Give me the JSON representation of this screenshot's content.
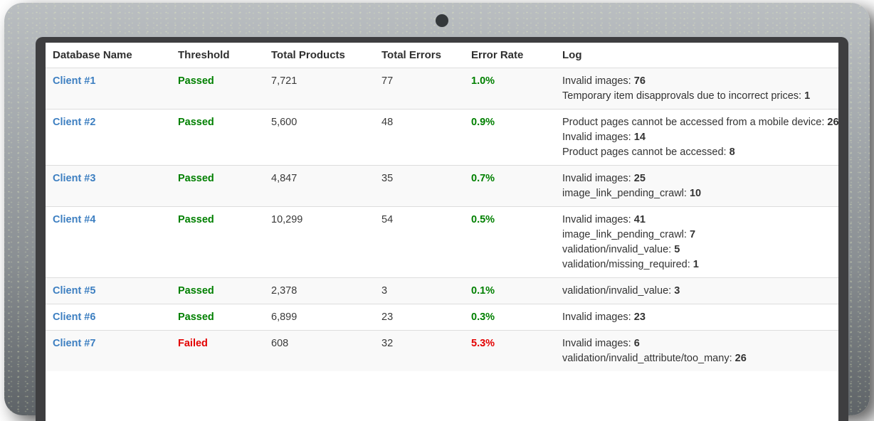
{
  "colors": {
    "passed": "#008000",
    "failed": "#e30000",
    "link_blue": "#3d7fc1",
    "text": "#333333",
    "row_stripe": "#f9f9f9",
    "border": "#dddddd",
    "bezel": "#3e3e40"
  },
  "table": {
    "columns": [
      "Database Name",
      "Threshold",
      "Total Products",
      "Total Errors",
      "Error Rate",
      "Log"
    ],
    "rows": [
      {
        "name": "Client #1",
        "threshold": "Passed",
        "status": "passed",
        "total_products": "7,721",
        "total_errors": "77",
        "error_rate": "1.0%",
        "log": [
          {
            "label": "Invalid images",
            "count": "76"
          },
          {
            "label": "Temporary item disapprovals due to incorrect prices",
            "count": "1"
          }
        ]
      },
      {
        "name": "Client #2",
        "threshold": "Passed",
        "status": "passed",
        "total_products": "5,600",
        "total_errors": "48",
        "error_rate": "0.9%",
        "log": [
          {
            "label": "Product pages cannot be accessed from a mobile device",
            "count": "26"
          },
          {
            "label": "Invalid images",
            "count": "14"
          },
          {
            "label": "Product pages cannot be accessed",
            "count": "8"
          }
        ]
      },
      {
        "name": "Client #3",
        "threshold": "Passed",
        "status": "passed",
        "total_products": "4,847",
        "total_errors": "35",
        "error_rate": "0.7%",
        "log": [
          {
            "label": "Invalid images",
            "count": "25"
          },
          {
            "label": "image_link_pending_crawl",
            "count": "10"
          }
        ]
      },
      {
        "name": "Client #4",
        "threshold": "Passed",
        "status": "passed",
        "total_products": "10,299",
        "total_errors": "54",
        "error_rate": "0.5%",
        "log": [
          {
            "label": "Invalid images",
            "count": "41"
          },
          {
            "label": "image_link_pending_crawl",
            "count": "7"
          },
          {
            "label": "validation/invalid_value",
            "count": "5"
          },
          {
            "label": "validation/missing_required",
            "count": "1"
          }
        ]
      },
      {
        "name": "Client #5",
        "threshold": "Passed",
        "status": "passed",
        "total_products": "2,378",
        "total_errors": "3",
        "error_rate": "0.1%",
        "log": [
          {
            "label": "validation/invalid_value",
            "count": "3"
          }
        ]
      },
      {
        "name": "Client #6",
        "threshold": "Passed",
        "status": "passed",
        "total_products": "6,899",
        "total_errors": "23",
        "error_rate": "0.3%",
        "log": [
          {
            "label": "Invalid images",
            "count": "23"
          }
        ]
      },
      {
        "name": "Client #7",
        "threshold": "Failed",
        "status": "failed",
        "total_products": "608",
        "total_errors": "32",
        "error_rate": "5.3%",
        "log": [
          {
            "label": "Invalid images",
            "count": "6"
          },
          {
            "label": "validation/invalid_attribute/too_many",
            "count": "26"
          }
        ]
      }
    ]
  }
}
